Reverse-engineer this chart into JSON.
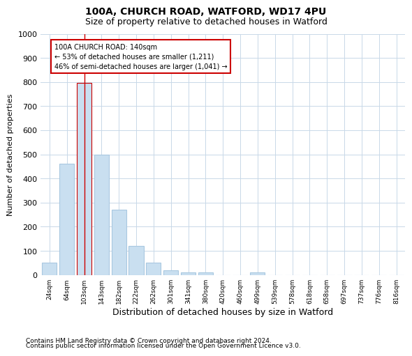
{
  "title_line1": "100A, CHURCH ROAD, WATFORD, WD17 4PU",
  "title_line2": "Size of property relative to detached houses in Watford",
  "xlabel": "Distribution of detached houses by size in Watford",
  "ylabel": "Number of detached properties",
  "footnote1": "Contains HM Land Registry data © Crown copyright and database right 2024.",
  "footnote2": "Contains public sector information licensed under the Open Government Licence v3.0.",
  "categories": [
    "24sqm",
    "64sqm",
    "103sqm",
    "143sqm",
    "182sqm",
    "222sqm",
    "262sqm",
    "301sqm",
    "341sqm",
    "380sqm",
    "420sqm",
    "460sqm",
    "499sqm",
    "539sqm",
    "578sqm",
    "618sqm",
    "658sqm",
    "697sqm",
    "737sqm",
    "776sqm",
    "816sqm"
  ],
  "values": [
    50,
    460,
    795,
    500,
    270,
    120,
    50,
    20,
    10,
    10,
    0,
    0,
    10,
    0,
    0,
    0,
    0,
    0,
    0,
    0,
    0
  ],
  "ylim": [
    0,
    1000
  ],
  "yticks": [
    0,
    100,
    200,
    300,
    400,
    500,
    600,
    700,
    800,
    900,
    1000
  ],
  "bar_color": "#c9dff0",
  "bar_edge_color": "#a8c8e0",
  "highlight_bar_index": 2,
  "highlight_bar_edge_color": "#cc0000",
  "annotation_text": "100A CHURCH ROAD: 140sqm\n← 53% of detached houses are smaller (1,211)\n46% of semi-detached houses are larger (1,041) →",
  "annotation_box_color": "#ffffff",
  "annotation_box_edge_color": "#cc0000",
  "vline_x_index": 2,
  "background_color": "#ffffff",
  "grid_color": "#c8d8e8",
  "title_fontsize": 10,
  "subtitle_fontsize": 9,
  "xlabel_fontsize": 9,
  "ylabel_fontsize": 8,
  "tick_fontsize": 8,
  "annot_fontsize": 7,
  "footnote_fontsize": 6.5
}
